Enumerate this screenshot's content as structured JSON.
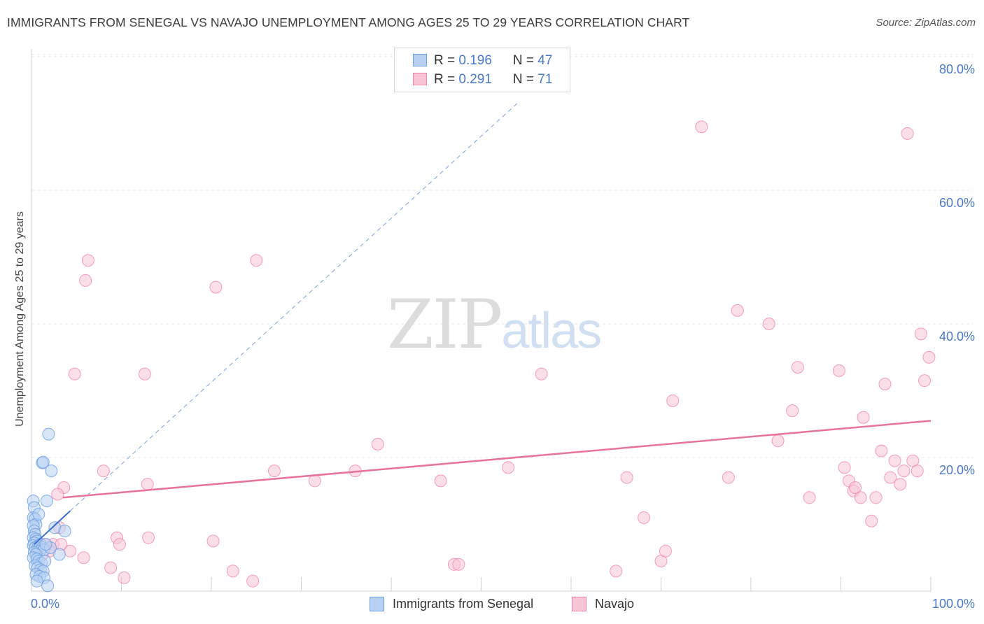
{
  "title": "IMMIGRANTS FROM SENEGAL VS NAVAJO UNEMPLOYMENT AMONG AGES 25 TO 29 YEARS CORRELATION CHART",
  "source": "Source: ZipAtlas.com",
  "watermark": {
    "zip": "ZIP",
    "atlas": "atlas"
  },
  "legend_top": {
    "rows": [
      {
        "r_label": "R = ",
        "r_value": "0.196",
        "n_label": "N = ",
        "n_value": "47"
      },
      {
        "r_label": "R = ",
        "r_value": "0.291",
        "n_label": "N = ",
        "n_value": "71"
      }
    ]
  },
  "chart_data": {
    "type": "scatter",
    "title": "IMMIGRANTS FROM SENEGAL VS NAVAJO UNEMPLOYMENT AMONG AGES 25 TO 29 YEARS CORRELATION CHART",
    "xlabel": "",
    "ylabel": "Unemployment Among Ages 25 to 29 years",
    "xlim": [
      0,
      100
    ],
    "ylim": [
      0,
      85
    ],
    "x_tick_labels": [
      {
        "value": 0,
        "label": "0.0%"
      },
      {
        "value": 100,
        "label": "100.0%"
      }
    ],
    "y_tick_labels": [
      {
        "value": 20,
        "label": "20.0%"
      },
      {
        "value": 40,
        "label": "40.0%"
      },
      {
        "value": 60,
        "label": "60.0%"
      },
      {
        "value": 80,
        "label": "80.0%"
      }
    ],
    "grid": true,
    "colors": {
      "senegal": "#6fa0e0",
      "senegal_fill": "#b8d1f2",
      "navajo": "#f080a6",
      "navajo_fill": "#f8c4d6",
      "senegal_line": "#3a6fcf",
      "navajo_line": "#e8739a",
      "axis_text": "#4a78c8"
    },
    "series": [
      {
        "name": "Immigrants from Senegal",
        "R": 0.196,
        "N": 47,
        "trend": {
          "x": [
            0.3,
            4.3
          ],
          "y": [
            7.0,
            12.0
          ],
          "dashed_extension_to": [
            54,
            73
          ]
        },
        "points": [
          [
            0.2,
            13.5
          ],
          [
            0.3,
            12.5
          ],
          [
            0.2,
            11.0
          ],
          [
            0.4,
            10.8
          ],
          [
            0.5,
            10.0
          ],
          [
            0.2,
            9.8
          ],
          [
            0.3,
            9.0
          ],
          [
            0.4,
            8.5
          ],
          [
            0.2,
            8.0
          ],
          [
            0.5,
            7.8
          ],
          [
            0.6,
            7.5
          ],
          [
            0.3,
            7.2
          ],
          [
            0.2,
            6.8
          ],
          [
            0.4,
            6.5
          ],
          [
            0.7,
            6.2
          ],
          [
            0.8,
            6.8
          ],
          [
            1.0,
            7.0
          ],
          [
            1.2,
            6.5
          ],
          [
            0.9,
            6.0
          ],
          [
            1.4,
            6.2
          ],
          [
            0.3,
            5.8
          ],
          [
            0.5,
            5.5
          ],
          [
            0.2,
            5.0
          ],
          [
            0.6,
            4.8
          ],
          [
            0.8,
            4.5
          ],
          [
            1.1,
            4.2
          ],
          [
            1.5,
            4.5
          ],
          [
            0.4,
            3.8
          ],
          [
            0.7,
            3.5
          ],
          [
            1.0,
            3.2
          ],
          [
            1.3,
            3.0
          ],
          [
            0.5,
            2.5
          ],
          [
            0.9,
            2.2
          ],
          [
            1.4,
            2.0
          ],
          [
            0.6,
            1.5
          ],
          [
            1.8,
            0.8
          ],
          [
            1.2,
            19.2
          ],
          [
            1.3,
            19.3
          ],
          [
            2.2,
            18.0
          ],
          [
            1.9,
            23.5
          ],
          [
            1.7,
            13.5
          ],
          [
            2.6,
            9.5
          ],
          [
            3.7,
            9.0
          ],
          [
            3.1,
            5.5
          ],
          [
            2.1,
            6.5
          ],
          [
            1.6,
            7.0
          ],
          [
            0.8,
            11.5
          ]
        ]
      },
      {
        "name": "Navajo",
        "R": 0.291,
        "N": 71,
        "trend": {
          "x": [
            3.5,
            100
          ],
          "y": [
            14.0,
            25.5
          ]
        },
        "points": [
          [
            6.3,
            49.5
          ],
          [
            6.0,
            46.5
          ],
          [
            4.8,
            32.5
          ],
          [
            12.6,
            32.5
          ],
          [
            20.5,
            45.5
          ],
          [
            25.0,
            49.5
          ],
          [
            8.0,
            18.0
          ],
          [
            3.6,
            15.5
          ],
          [
            2.9,
            14.5
          ],
          [
            12.9,
            16.0
          ],
          [
            3.1,
            9.5
          ],
          [
            9.5,
            8.0
          ],
          [
            9.8,
            7.0
          ],
          [
            13.0,
            8.0
          ],
          [
            20.2,
            7.5
          ],
          [
            2.4,
            7.0
          ],
          [
            3.3,
            7.0
          ],
          [
            4.3,
            6.0
          ],
          [
            5.8,
            5.0
          ],
          [
            8.8,
            3.5
          ],
          [
            10.3,
            2.0
          ],
          [
            22.4,
            3.0
          ],
          [
            24.6,
            1.5
          ],
          [
            27.0,
            18.0
          ],
          [
            31.5,
            16.5
          ],
          [
            36.0,
            18.0
          ],
          [
            38.5,
            22.0
          ],
          [
            45.5,
            16.5
          ],
          [
            47.0,
            4.0
          ],
          [
            47.5,
            4.0
          ],
          [
            53.0,
            18.5
          ],
          [
            56.7,
            32.5
          ],
          [
            66.2,
            17.0
          ],
          [
            68.1,
            11.0
          ],
          [
            70.0,
            4.5
          ],
          [
            70.5,
            6.0
          ],
          [
            71.3,
            28.5
          ],
          [
            74.5,
            69.5
          ],
          [
            65.0,
            3.0
          ],
          [
            77.5,
            17.0
          ],
          [
            78.5,
            42.0
          ],
          [
            82.0,
            40.0
          ],
          [
            85.2,
            33.5
          ],
          [
            84.6,
            27.0
          ],
          [
            83.0,
            22.5
          ],
          [
            86.5,
            14.0
          ],
          [
            89.8,
            33.0
          ],
          [
            90.4,
            18.5
          ],
          [
            90.9,
            16.5
          ],
          [
            91.4,
            15.0
          ],
          [
            91.6,
            15.5
          ],
          [
            92.2,
            14.0
          ],
          [
            92.5,
            26.0
          ],
          [
            93.4,
            10.5
          ],
          [
            93.9,
            14.0
          ],
          [
            94.5,
            21.0
          ],
          [
            94.9,
            31.0
          ],
          [
            95.5,
            17.0
          ],
          [
            96.0,
            19.5
          ],
          [
            96.6,
            16.0
          ],
          [
            97.0,
            18.0
          ],
          [
            97.4,
            68.5
          ],
          [
            98.0,
            19.5
          ],
          [
            98.5,
            18.0
          ],
          [
            98.9,
            38.5
          ],
          [
            99.3,
            31.5
          ],
          [
            99.8,
            35.0
          ],
          [
            1.5,
            7.0
          ],
          [
            2.0,
            6.0
          ],
          [
            0.8,
            6.5
          ],
          [
            1.2,
            5.5
          ]
        ]
      }
    ]
  },
  "legend_bottom": [
    {
      "label": "Immigrants from Senegal"
    },
    {
      "label": "Navajo"
    }
  ]
}
